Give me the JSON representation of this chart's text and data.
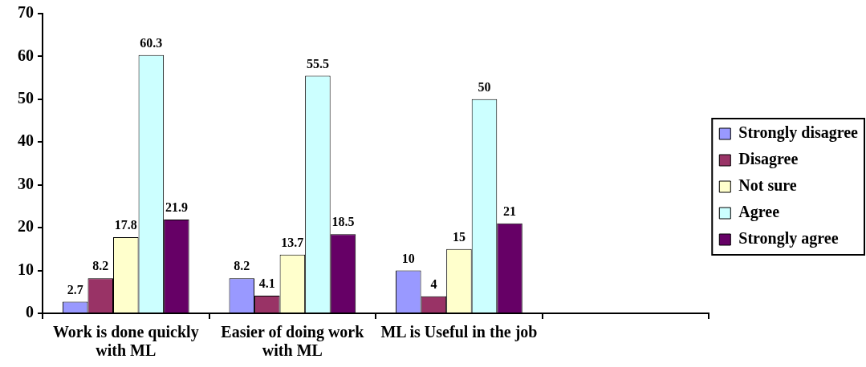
{
  "chart_data": {
    "type": "bar",
    "categories": [
      "Work is done quickly with ML",
      "Easier of doing work with ML",
      "ML is Useful in the job",
      null
    ],
    "series": [
      {
        "name": "Strongly disagree",
        "color": "#9999ff",
        "values": [
          2.7,
          8.2,
          10,
          null
        ]
      },
      {
        "name": "Disagree",
        "color": "#993366",
        "values": [
          8.2,
          4.1,
          4,
          null
        ]
      },
      {
        "name": "Not sure",
        "color": "#ffffcc",
        "values": [
          17.8,
          13.7,
          15,
          null
        ]
      },
      {
        "name": "Agree",
        "color": "#ccffff",
        "values": [
          60.3,
          55.5,
          50,
          null
        ]
      },
      {
        "name": "Strongly agree",
        "color": "#660066",
        "values": [
          21.9,
          18.5,
          21,
          null
        ]
      }
    ],
    "ylim": [
      0,
      70
    ],
    "yticks": [
      0,
      10,
      20,
      30,
      40,
      50,
      60,
      70
    ],
    "grid": false,
    "legend": "right",
    "data_labels": true
  }
}
